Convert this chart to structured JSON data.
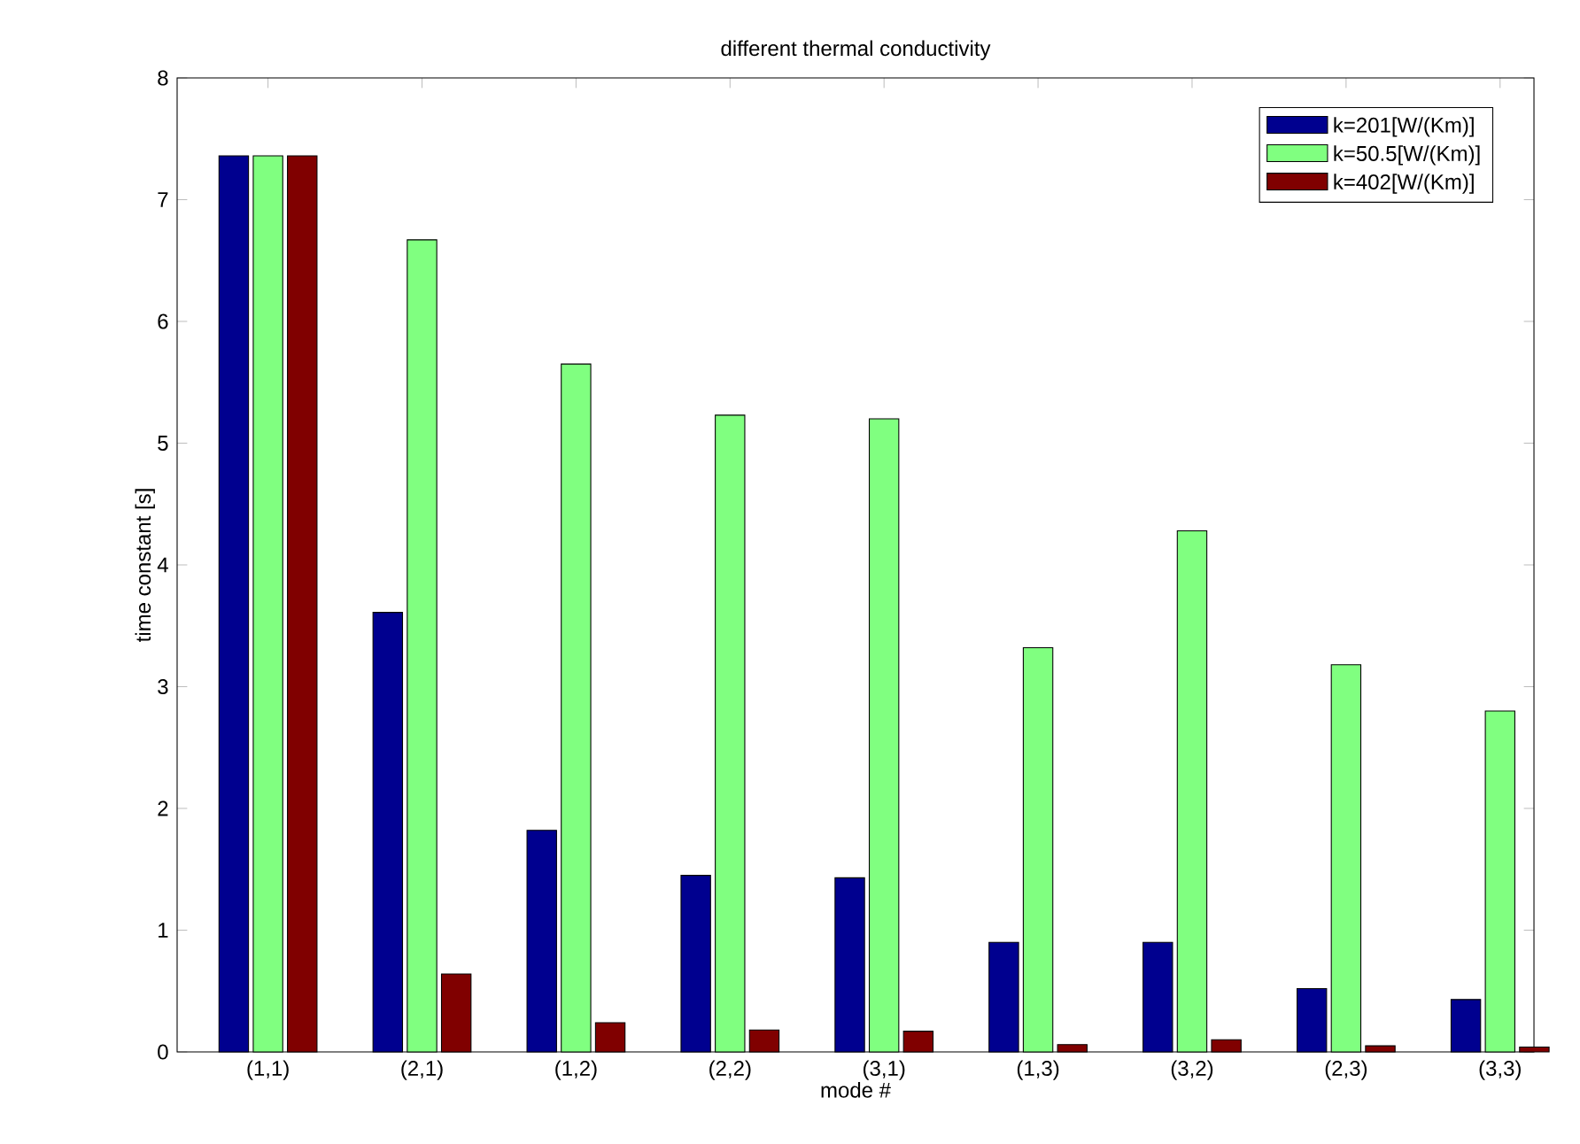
{
  "chart_data": {
    "type": "bar",
    "title": "different thermal conductivity",
    "xlabel": "mode #",
    "ylabel": "time constant [s]",
    "categories": [
      "(1,1)",
      "(2,1)",
      "(1,2)",
      "(2,2)",
      "(3,1)",
      "(1,3)",
      "(3,2)",
      "(2,3)",
      "(3,3)"
    ],
    "series": [
      {
        "name": "k=201[W/(Km)]",
        "color": "#00008f",
        "values": [
          7.36,
          3.61,
          1.82,
          1.45,
          1.43,
          0.9,
          0.9,
          0.52,
          0.43
        ]
      },
      {
        "name": "k=50.5[W/(Km)]",
        "color": "#80ff80",
        "values": [
          7.36,
          6.67,
          5.65,
          5.23,
          5.2,
          3.32,
          4.28,
          3.18,
          2.8
        ]
      },
      {
        "name": "k=402[W/(Km)]",
        "color": "#800000",
        "values": [
          7.36,
          0.64,
          0.24,
          0.18,
          0.17,
          0.06,
          0.1,
          0.05,
          0.04
        ]
      }
    ],
    "ylim": [
      0,
      8
    ],
    "yticks": [
      0,
      1,
      2,
      3,
      4,
      5,
      6,
      7,
      8
    ],
    "legend": "top right"
  }
}
